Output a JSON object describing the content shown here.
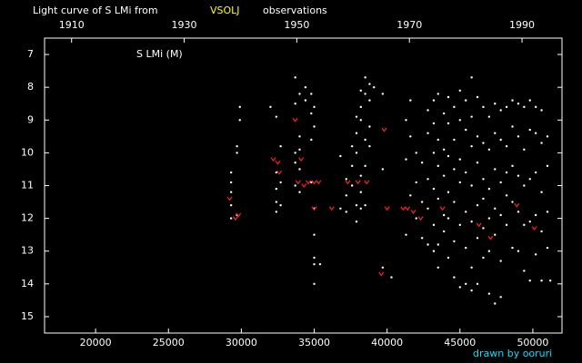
{
  "chart_data": {
    "type": "scatter",
    "title": "Light curve of S LMi from",
    "source": "VSOLJ",
    "title_suffix": "observations",
    "star_label": "S LMi (M)",
    "credit": "drawn by ooruri",
    "xlim": [
      16500,
      52000
    ],
    "xticks": [
      20000,
      25000,
      30000,
      35000,
      40000,
      45000,
      50000
    ],
    "x2lim": [
      1905.2,
      1997.1
    ],
    "x2ticks": [
      1910,
      1930,
      1950,
      1970,
      1990
    ],
    "ylim": [
      6.5,
      15.5
    ],
    "y_inverted": true,
    "yticks": [
      7,
      8,
      9,
      10,
      11,
      12,
      13,
      14,
      15
    ],
    "series": [
      {
        "color": "#ffffff",
        "marker": "dot",
        "x": [
          29300,
          29300,
          29300,
          29300,
          29300,
          29700,
          29700,
          29700,
          29900,
          29900,
          32000,
          32400,
          32400,
          32400,
          32400,
          32400,
          32700,
          32700,
          32700,
          33700,
          33700,
          33700,
          33700,
          33700,
          34000,
          34000,
          34000,
          34000,
          34000,
          34400,
          34400,
          34800,
          34800,
          34800,
          34800,
          35000,
          35000,
          35000,
          35000,
          35000,
          35000,
          35000,
          35400,
          36800,
          36800,
          37200,
          37200,
          37200,
          37600,
          37600,
          37600,
          37900,
          37900,
          37900,
          37900,
          37900,
          38200,
          38200,
          38200,
          38200,
          38200,
          38200,
          38500,
          38500,
          38500,
          38500,
          38500,
          38800,
          38800,
          38800,
          38800,
          39100,
          39700,
          39700,
          39700,
          40300,
          41300,
          41300,
          41300,
          41600,
          41600,
          41600,
          42000,
          42000,
          42000,
          42400,
          42400,
          42400,
          42800,
          42800,
          42800,
          42800,
          42800,
          43200,
          43200,
          43200,
          43200,
          43200,
          43200,
          43500,
          43500,
          43500,
          43500,
          43500,
          43500,
          43900,
          43900,
          43900,
          43900,
          43900,
          44200,
          44200,
          44200,
          44200,
          44200,
          44200,
          44600,
          44600,
          44600,
          44600,
          44600,
          44600,
          45000,
          45000,
          45000,
          45000,
          45000,
          45000,
          45400,
          45400,
          45400,
          45400,
          45400,
          45400,
          45800,
          45800,
          45800,
          45800,
          45800,
          45800,
          45800,
          46200,
          46200,
          46200,
          46200,
          46200,
          46200,
          46600,
          46600,
          46600,
          46600,
          46600,
          46600,
          47000,
          47000,
          47000,
          47000,
          47000,
          47000,
          47400,
          47400,
          47400,
          47400,
          47400,
          47400,
          47800,
          47800,
          47800,
          47800,
          47800,
          47800,
          48200,
          48200,
          48200,
          48200,
          48200,
          48600,
          48600,
          48600,
          48600,
          48600,
          49000,
          49000,
          49000,
          49000,
          49000,
          49400,
          49400,
          49400,
          49400,
          49400,
          49800,
          49800,
          49800,
          49800,
          49800,
          50200,
          50200,
          50200,
          50200,
          50200,
          50600,
          50600,
          50600,
          50600,
          50600,
          51000,
          51000,
          51000,
          51000,
          51200
        ],
        "values": [
          10.6,
          10.9,
          11.2,
          11.6,
          12.0,
          9.8,
          10.0,
          11.9,
          8.6,
          9.0,
          8.6,
          8.9,
          10.6,
          11.1,
          11.5,
          11.8,
          9.8,
          10.9,
          11.6,
          7.7,
          8.5,
          10.0,
          10.3,
          11.0,
          8.2,
          9.5,
          9.9,
          10.5,
          11.2,
          8.0,
          8.4,
          8.2,
          8.8,
          9.6,
          10.9,
          8.6,
          9.2,
          11.7,
          12.5,
          13.2,
          13.4,
          14.0,
          13.4,
          10.1,
          11.7,
          10.8,
          11.3,
          11.8,
          9.8,
          10.4,
          11.0,
          8.9,
          9.4,
          10.0,
          11.6,
          12.1,
          8.1,
          8.6,
          9.0,
          10.7,
          11.2,
          11.7,
          7.7,
          8.2,
          9.6,
          10.4,
          11.6,
          7.9,
          8.4,
          9.2,
          9.8,
          8.0,
          8.2,
          10.5,
          13.5,
          13.8,
          9.0,
          10.2,
          12.5,
          8.4,
          9.5,
          11.3,
          10.0,
          10.9,
          12.0,
          10.3,
          11.5,
          12.6,
          8.7,
          9.4,
          10.8,
          11.7,
          12.8,
          8.4,
          9.1,
          10.0,
          11.1,
          12.2,
          13.0,
          8.2,
          9.6,
          10.4,
          11.4,
          12.8,
          13.5,
          8.8,
          9.9,
          10.7,
          11.9,
          12.4,
          8.3,
          9.1,
          10.1,
          11.2,
          12.0,
          13.2,
          8.6,
          9.6,
          10.5,
          11.5,
          12.7,
          13.8,
          8.1,
          9.0,
          10.2,
          10.9,
          12.2,
          14.1,
          8.4,
          9.3,
          10.6,
          11.8,
          12.9,
          14.0,
          7.7,
          8.9,
          9.8,
          11.0,
          12.1,
          13.5,
          14.2,
          8.3,
          9.5,
          10.3,
          11.6,
          12.6,
          14.0,
          8.6,
          9.7,
          10.8,
          11.4,
          12.3,
          13.2,
          8.9,
          9.9,
          11.1,
          12.0,
          13.0,
          14.3,
          8.5,
          9.4,
          10.5,
          11.7,
          12.5,
          14.6,
          8.7,
          9.6,
          10.9,
          11.9,
          13.3,
          14.4,
          8.6,
          9.8,
          10.6,
          11.3,
          12.2,
          8.4,
          9.2,
          10.4,
          11.5,
          12.9,
          8.5,
          9.5,
          10.7,
          11.8,
          13.0,
          8.6,
          9.9,
          11.0,
          12.2,
          13.6,
          8.4,
          9.3,
          10.8,
          12.1,
          13.9,
          8.6,
          9.4,
          10.6,
          11.9,
          13.1,
          8.7,
          9.7,
          11.2,
          12.4,
          13.9,
          9.5,
          10.4,
          11.8,
          12.9,
          13.9
        ]
      },
      {
        "color": "#ff2020",
        "marker": "v",
        "x": [
          29200,
          29600,
          29800,
          32200,
          32500,
          32600,
          33700,
          34100,
          33900,
          34300,
          34600,
          35000,
          35300,
          35000,
          36200,
          37300,
          38000,
          38600,
          39600,
          39800,
          40000,
          41100,
          41400,
          41800,
          42300,
          43800,
          46300,
          47100,
          48900,
          50100
        ],
        "values": [
          11.4,
          12.0,
          11.9,
          10.2,
          10.3,
          10.6,
          9.0,
          10.2,
          10.9,
          11.0,
          10.9,
          10.9,
          10.9,
          11.7,
          11.7,
          10.9,
          10.9,
          10.9,
          13.7,
          9.3,
          11.7,
          11.7,
          11.7,
          11.8,
          12.0,
          11.7,
          12.2,
          12.6,
          11.6,
          12.3
        ]
      }
    ]
  }
}
